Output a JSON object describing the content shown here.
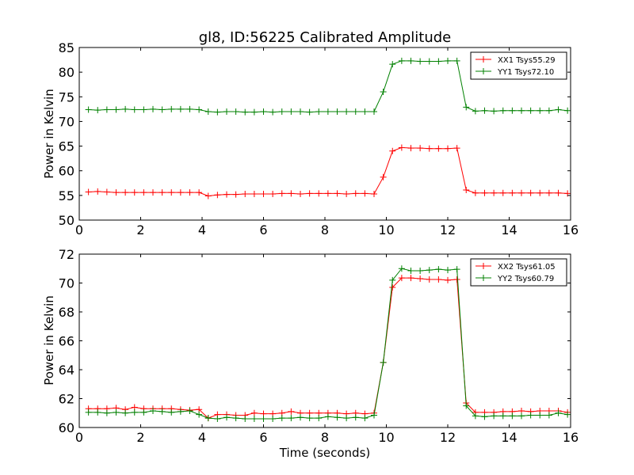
{
  "figure": {
    "title": "gl8, ID:56225 Calibrated Amplitude"
  },
  "chart_data": [
    {
      "type": "line",
      "title": "gl8, ID:56225 Calibrated Amplitude",
      "xlabel": "",
      "ylabel": "Power in Kelvin",
      "xlim": [
        0,
        16
      ],
      "ylim": [
        50,
        85
      ],
      "xticks": [
        "0",
        "2",
        "4",
        "6",
        "8",
        "10",
        "12",
        "14",
        "16"
      ],
      "yticks": [
        "50",
        "55",
        "60",
        "65",
        "70",
        "75",
        "80",
        "85"
      ],
      "legend_position": "upper right",
      "grid": false,
      "x": [
        0.3,
        0.6,
        0.9,
        1.2,
        1.5,
        1.8,
        2.1,
        2.4,
        2.7,
        3.0,
        3.3,
        3.6,
        3.9,
        4.2,
        4.5,
        4.8,
        5.1,
        5.4,
        5.7,
        6.0,
        6.3,
        6.6,
        6.9,
        7.2,
        7.5,
        7.8,
        8.1,
        8.4,
        8.7,
        9.0,
        9.3,
        9.6,
        9.9,
        10.2,
        10.5,
        10.8,
        11.1,
        11.4,
        11.7,
        12.0,
        12.3,
        12.6,
        12.9,
        13.2,
        13.5,
        13.8,
        14.1,
        14.4,
        14.7,
        15.0,
        15.3,
        15.6,
        15.9
      ],
      "series": [
        {
          "name": "XX1 Tsys55.29",
          "color": "#ff0000",
          "values": [
            55.7,
            55.8,
            55.7,
            55.6,
            55.6,
            55.6,
            55.6,
            55.6,
            55.6,
            55.6,
            55.6,
            55.6,
            55.6,
            54.9,
            55.1,
            55.2,
            55.2,
            55.3,
            55.3,
            55.3,
            55.3,
            55.4,
            55.4,
            55.3,
            55.4,
            55.4,
            55.4,
            55.4,
            55.3,
            55.4,
            55.4,
            55.3,
            58.7,
            64.0,
            64.7,
            64.6,
            64.6,
            64.5,
            64.5,
            64.5,
            64.6,
            56.1,
            55.5,
            55.5,
            55.5,
            55.5,
            55.5,
            55.5,
            55.5,
            55.5,
            55.5,
            55.5,
            55.4
          ]
        },
        {
          "name": "YY1 Tsys72.10",
          "color": "#008000",
          "values": [
            72.4,
            72.3,
            72.4,
            72.4,
            72.5,
            72.4,
            72.4,
            72.5,
            72.4,
            72.5,
            72.5,
            72.5,
            72.4,
            72.0,
            71.9,
            72.0,
            72.0,
            71.9,
            71.9,
            72.0,
            71.9,
            72.0,
            72.0,
            72.0,
            71.9,
            72.0,
            72.0,
            72.0,
            72.0,
            72.0,
            72.0,
            72.0,
            76.0,
            81.6,
            82.3,
            82.3,
            82.2,
            82.2,
            82.2,
            82.3,
            82.3,
            72.9,
            72.1,
            72.2,
            72.1,
            72.2,
            72.2,
            72.2,
            72.2,
            72.2,
            72.2,
            72.4,
            72.2
          ]
        }
      ]
    },
    {
      "type": "line",
      "title": "",
      "xlabel": "Time (seconds)",
      "ylabel": "Power in Kelvin",
      "xlim": [
        0,
        16
      ],
      "ylim": [
        60,
        72
      ],
      "xticks": [
        "0",
        "2",
        "4",
        "6",
        "8",
        "10",
        "12",
        "14",
        "16"
      ],
      "yticks": [
        "60",
        "62",
        "64",
        "66",
        "68",
        "70",
        "72"
      ],
      "legend_position": "upper right",
      "grid": false,
      "x": [
        0.3,
        0.6,
        0.9,
        1.2,
        1.5,
        1.8,
        2.1,
        2.4,
        2.7,
        3.0,
        3.3,
        3.6,
        3.9,
        4.2,
        4.5,
        4.8,
        5.1,
        5.4,
        5.7,
        6.0,
        6.3,
        6.6,
        6.9,
        7.2,
        7.5,
        7.8,
        8.1,
        8.4,
        8.7,
        9.0,
        9.3,
        9.6,
        9.9,
        10.2,
        10.5,
        10.8,
        11.1,
        11.4,
        11.7,
        12.0,
        12.3,
        12.6,
        12.9,
        13.2,
        13.5,
        13.8,
        14.1,
        14.4,
        14.7,
        15.0,
        15.3,
        15.6,
        15.9
      ],
      "series": [
        {
          "name": "XX2 Tsys61.05",
          "color": "#ff0000",
          "values": [
            61.3,
            61.3,
            61.3,
            61.35,
            61.25,
            61.4,
            61.3,
            61.3,
            61.3,
            61.3,
            61.25,
            61.2,
            61.25,
            60.65,
            60.9,
            60.9,
            60.85,
            60.85,
            61.0,
            60.95,
            60.95,
            61.0,
            61.1,
            61.0,
            61.0,
            61.0,
            61.0,
            61.0,
            60.95,
            61.0,
            60.95,
            61.0,
            64.5,
            69.7,
            70.35,
            70.35,
            70.3,
            70.25,
            70.25,
            70.2,
            70.25,
            61.7,
            61.05,
            61.05,
            61.05,
            61.1,
            61.1,
            61.15,
            61.1,
            61.15,
            61.15,
            61.15,
            61.05
          ]
        },
        {
          "name": "YY2 Tsys60.79",
          "color": "#008000",
          "values": [
            61.05,
            61.05,
            61.0,
            61.05,
            61.0,
            61.05,
            61.05,
            61.15,
            61.1,
            61.05,
            61.1,
            61.15,
            60.9,
            60.65,
            60.6,
            60.7,
            60.65,
            60.6,
            60.6,
            60.6,
            60.6,
            60.65,
            60.65,
            60.7,
            60.65,
            60.65,
            60.75,
            60.7,
            60.65,
            60.7,
            60.65,
            60.85,
            64.5,
            70.2,
            71.0,
            70.85,
            70.85,
            70.9,
            70.95,
            70.9,
            70.95,
            61.5,
            60.8,
            60.75,
            60.8,
            60.8,
            60.8,
            60.8,
            60.85,
            60.85,
            60.85,
            61.0,
            60.9
          ]
        }
      ]
    }
  ]
}
